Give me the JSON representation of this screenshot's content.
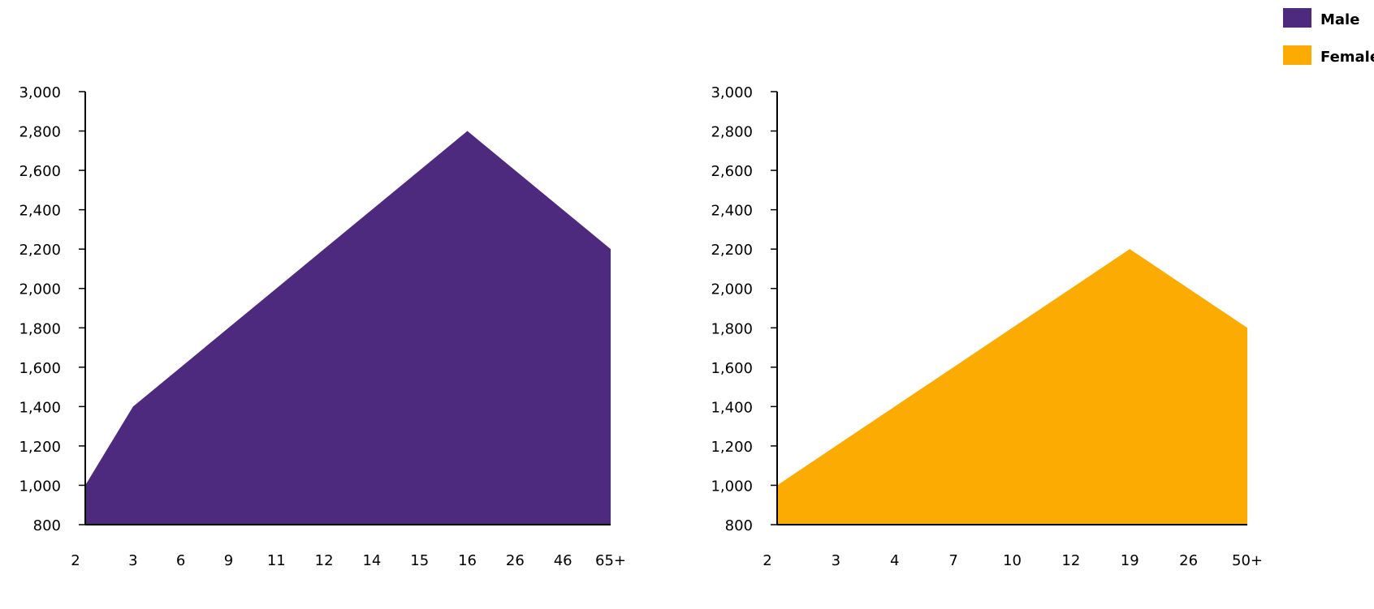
{
  "legend": [
    {
      "label": "Male",
      "color": "#4e2a7f"
    },
    {
      "label": "Female",
      "color": "#fcab03"
    }
  ],
  "chart_data": [
    {
      "type": "area",
      "series": [
        {
          "name": "Male",
          "color": "#4e2a7f",
          "values": [
            1000,
            1400,
            1600,
            1800,
            2000,
            2200,
            2400,
            2600,
            2800,
            2600,
            2400,
            2200
          ]
        }
      ],
      "categories": [
        "2",
        "3",
        "6",
        "9",
        "11",
        "12",
        "14",
        "15",
        "16",
        "26",
        "46",
        "65+"
      ],
      "yticks": [
        "800",
        "1,000",
        "1,200",
        "1,400",
        "1,600",
        "1,800",
        "2,000",
        "2,200",
        "2,400",
        "2,600",
        "2,800",
        "3,000"
      ],
      "ylim": [
        800,
        3000
      ],
      "grid": false
    },
    {
      "type": "area",
      "series": [
        {
          "name": "Female",
          "color": "#fcab03",
          "values": [
            1000,
            1200,
            1400,
            1600,
            1800,
            2000,
            2200,
            2000,
            1800
          ]
        }
      ],
      "categories": [
        "2",
        "3",
        "4",
        "7",
        "10",
        "12",
        "19",
        "26",
        "50+"
      ],
      "yticks": [
        "800",
        "1,000",
        "1,200",
        "1,400",
        "1,600",
        "1,800",
        "2,000",
        "2,200",
        "2,400",
        "2,600",
        "2,800",
        "3,000"
      ],
      "ylim": [
        800,
        3000
      ],
      "grid": false
    }
  ]
}
